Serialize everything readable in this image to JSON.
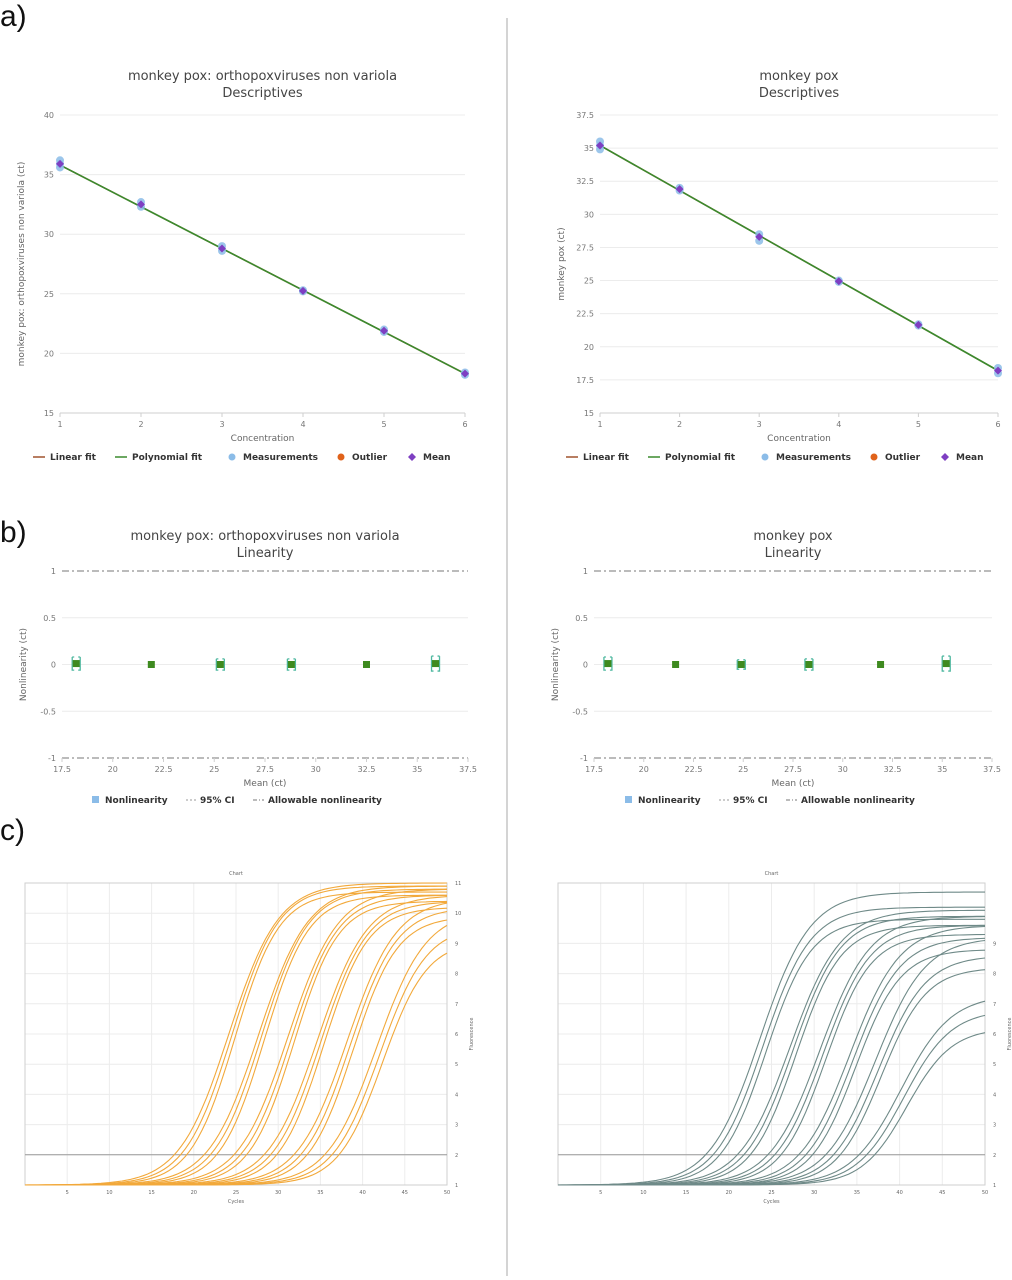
{
  "panel_labels": [
    "a)",
    "b)",
    "c)"
  ],
  "chart_data": [
    {
      "id": "desc_left",
      "type": "scatter",
      "title": "monkey pox: orthopoxviruses non variola",
      "subtitle": "Descriptives",
      "xlabel": "Concentration",
      "ylabel": "monkey pox: orthopoxviruses non variola (ct)",
      "xlim": [
        1,
        6
      ],
      "ylim": [
        15,
        40
      ],
      "xticks": [
        1,
        2,
        3,
        4,
        5,
        6
      ],
      "xtick_labels": [
        "1",
        "2",
        "3",
        "4",
        "5",
        "6"
      ],
      "yticks": [
        15,
        20,
        25,
        30,
        35,
        40
      ],
      "ytick_labels": [
        "15",
        "20",
        "25",
        "30",
        "35",
        "40"
      ],
      "legend": [
        "Linear fit",
        "Polynomial fit",
        "Measurements",
        "Outlier",
        "Mean"
      ],
      "legend_position": "bottom",
      "measurements": [
        [
          1,
          36.2
        ],
        [
          1,
          35.6
        ],
        [
          1,
          35.9
        ],
        [
          2,
          32.7
        ],
        [
          2,
          32.3
        ],
        [
          3,
          29.0
        ],
        [
          3,
          28.6
        ],
        [
          4,
          25.3
        ],
        [
          4,
          25.2
        ],
        [
          5,
          22.0
        ],
        [
          5,
          21.8
        ],
        [
          6,
          18.4
        ],
        [
          6,
          18.2
        ]
      ],
      "means": [
        [
          1,
          35.9
        ],
        [
          2,
          32.5
        ],
        [
          3,
          28.8
        ],
        [
          4,
          25.25
        ],
        [
          5,
          21.9
        ],
        [
          6,
          18.3
        ]
      ],
      "linear_fit": [
        [
          1,
          35.8
        ],
        [
          6,
          18.3
        ]
      ],
      "polynomial_fit": [
        [
          1,
          35.8
        ],
        [
          6,
          18.3
        ]
      ],
      "colors": {
        "linear": "#a0522d",
        "poly": "#3b8a2e",
        "measurement": "#8bbce8",
        "outlier": "#e0621a",
        "mean": "#7e3fc2"
      }
    },
    {
      "id": "desc_right",
      "type": "scatter",
      "title": "monkey pox",
      "subtitle": "Descriptives",
      "xlabel": "Concentration",
      "ylabel": "monkey pox (ct)",
      "xlim": [
        1,
        6
      ],
      "ylim": [
        15,
        37.5
      ],
      "xticks": [
        1,
        2,
        3,
        4,
        5,
        6
      ],
      "xtick_labels": [
        "1",
        "2",
        "3",
        "4",
        "5",
        "6"
      ],
      "yticks": [
        15,
        17.5,
        20,
        22.5,
        25,
        27.5,
        30,
        32.5,
        35,
        37.5
      ],
      "ytick_labels": [
        "15",
        "17.5",
        "20",
        "22.5",
        "25",
        "27.5",
        "30",
        "32.5",
        "35",
        "37.5"
      ],
      "legend": [
        "Linear fit",
        "Polynomial fit",
        "Measurements",
        "Outlier",
        "Mean"
      ],
      "legend_position": "bottom",
      "measurements": [
        [
          1,
          35.5
        ],
        [
          1,
          34.9
        ],
        [
          1,
          35.2
        ],
        [
          2,
          32.0
        ],
        [
          2,
          31.8
        ],
        [
          3,
          28.5
        ],
        [
          3,
          28.0
        ],
        [
          4,
          25.0
        ],
        [
          4,
          24.9
        ],
        [
          5,
          21.7
        ],
        [
          5,
          21.6
        ],
        [
          6,
          18.4
        ],
        [
          6,
          18.0
        ]
      ],
      "means": [
        [
          1,
          35.2
        ],
        [
          2,
          31.9
        ],
        [
          3,
          28.3
        ],
        [
          4,
          24.95
        ],
        [
          5,
          21.65
        ],
        [
          6,
          18.2
        ]
      ],
      "linear_fit": [
        [
          1,
          35.2
        ],
        [
          6,
          18.2
        ]
      ],
      "polynomial_fit": [
        [
          1,
          35.2
        ],
        [
          6,
          18.2
        ]
      ],
      "colors": {
        "linear": "#a0522d",
        "poly": "#3b8a2e",
        "measurement": "#8bbce8",
        "outlier": "#e0621a",
        "mean": "#7e3fc2"
      }
    },
    {
      "id": "lin_left",
      "type": "scatter",
      "title": "monkey pox: orthopoxviruses non variola",
      "subtitle": "Linearity",
      "xlabel": "Mean (ct)",
      "ylabel": "Nonlinearity (ct)",
      "xlim": [
        17.5,
        37.5
      ],
      "ylim": [
        -1,
        1
      ],
      "xticks": [
        17.5,
        20,
        22.5,
        25,
        27.5,
        30,
        32.5,
        35,
        37.5
      ],
      "xtick_labels": [
        "17.5",
        "20",
        "22.5",
        "25",
        "27.5",
        "30",
        "32.5",
        "35",
        "37.5"
      ],
      "yticks": [
        -1,
        -0.5,
        0,
        0.5,
        1
      ],
      "ytick_labels": [
        "-1",
        "-0.5",
        "0",
        "0.5",
        "1"
      ],
      "legend": [
        "Nonlinearity",
        "95% CI",
        "Allowable nonlinearity"
      ],
      "legend_position": "bottom",
      "points": [
        [
          18.2,
          0.01,
          0.07
        ],
        [
          21.9,
          0.0,
          0.02
        ],
        [
          25.3,
          0.0,
          0.06
        ],
        [
          28.8,
          0.0,
          0.06
        ],
        [
          32.5,
          0.0,
          0.02
        ],
        [
          35.9,
          0.01,
          0.08
        ]
      ],
      "allowable": [
        -1,
        1
      ],
      "colors": {
        "point": "#3e8a1f",
        "ci": "#4fb8a0",
        "allow": "#777777",
        "legend_square": "#8bbce8"
      }
    },
    {
      "id": "lin_right",
      "type": "scatter",
      "title": "monkey pox",
      "subtitle": "Linearity",
      "xlabel": "Mean (ct)",
      "ylabel": "Nonlinearity (ct)",
      "xlim": [
        17.5,
        37.5
      ],
      "ylim": [
        -1,
        1
      ],
      "xticks": [
        17.5,
        20,
        22.5,
        25,
        27.5,
        30,
        32.5,
        35,
        37.5
      ],
      "xtick_labels": [
        "17.5",
        "20",
        "22.5",
        "25",
        "27.5",
        "30",
        "32.5",
        "35",
        "37.5"
      ],
      "yticks": [
        -1,
        -0.5,
        0,
        0.5,
        1
      ],
      "ytick_labels": [
        "-1",
        "-0.5",
        "0",
        "0.5",
        "1"
      ],
      "legend": [
        "Nonlinearity",
        "95% CI",
        "Allowable nonlinearity"
      ],
      "legend_position": "bottom",
      "points": [
        [
          18.2,
          0.01,
          0.07
        ],
        [
          21.6,
          0.0,
          0.02
        ],
        [
          24.9,
          0.0,
          0.05
        ],
        [
          28.3,
          0.0,
          0.06
        ],
        [
          31.9,
          0.0,
          0.02
        ],
        [
          35.2,
          0.01,
          0.08
        ]
      ],
      "allowable": [
        -1,
        1
      ],
      "colors": {
        "point": "#3e8a1f",
        "ci": "#4fb8a0",
        "allow": "#777777",
        "legend_square": "#8bbce8"
      }
    },
    {
      "id": "pcr_left",
      "type": "line",
      "title": "Chart",
      "xlabel": "Cycles",
      "ylabel": "Fluorescence",
      "xlim": [
        0,
        50
      ],
      "ylim": [
        1,
        11
      ],
      "xticks": [
        5,
        10,
        15,
        20,
        25,
        30,
        35,
        40,
        45,
        50
      ],
      "xtick_labels": [
        "5",
        "10",
        "15",
        "20",
        "25",
        "30",
        "35",
        "40",
        "45",
        "50"
      ],
      "yticks": [
        1,
        2,
        3,
        4,
        5,
        6,
        7,
        8,
        9,
        10,
        11
      ],
      "ytick_labels": [
        "1",
        "2",
        "3",
        "4",
        "5",
        "6",
        "7",
        "8",
        "9",
        "10",
        "11"
      ],
      "threshold": 2.0,
      "baseline": 1.0,
      "curve_groups": [
        {
          "midpoint": 24.5,
          "plateaus": [
            11.0,
            10.9,
            10.7
          ]
        },
        {
          "midpoint": 28.0,
          "plateaus": [
            10.9,
            10.8,
            10.6
          ]
        },
        {
          "midpoint": 31.5,
          "plateaus": [
            10.8,
            10.6,
            10.4
          ]
        },
        {
          "midpoint": 35.0,
          "plateaus": [
            10.6,
            10.4,
            10.2
          ]
        },
        {
          "midpoint": 38.5,
          "plateaus": [
            10.5,
            10.2,
            9.9
          ]
        },
        {
          "midpoint": 42.0,
          "plateaus": [
            10.1,
            9.6,
            9.1
          ]
        }
      ],
      "colors": {
        "curve": "#f2a93b",
        "threshold": "#9a9a9a"
      }
    },
    {
      "id": "pcr_right",
      "type": "line",
      "title": "Chart",
      "xlabel": "Cycles",
      "ylabel": "Fluorescence",
      "xlim": [
        0,
        50
      ],
      "ylim": [
        1,
        11
      ],
      "xticks": [
        5,
        10,
        15,
        20,
        25,
        30,
        35,
        40,
        45,
        50
      ],
      "xtick_labels": [
        "5",
        "10",
        "15",
        "20",
        "25",
        "30",
        "35",
        "40",
        "45",
        "50"
      ],
      "yticks": [
        1,
        2,
        3,
        4,
        5,
        6,
        7,
        8,
        9
      ],
      "ytick_labels": [
        "1",
        "2",
        "3",
        "4",
        "5",
        "6",
        "7",
        "8",
        "9"
      ],
      "threshold": 2.0,
      "baseline": 1.0,
      "curve_groups": [
        {
          "midpoint": 24.0,
          "plateaus": [
            10.7,
            10.2,
            9.8
          ]
        },
        {
          "midpoint": 27.5,
          "plateaus": [
            10.1,
            9.9,
            9.6
          ]
        },
        {
          "midpoint": 31.0,
          "plateaus": [
            9.9,
            9.6,
            9.3
          ]
        },
        {
          "midpoint": 34.5,
          "plateaus": [
            9.6,
            9.2,
            8.8
          ]
        },
        {
          "midpoint": 37.5,
          "plateaus": [
            9.2,
            8.6,
            8.2
          ]
        },
        {
          "midpoint": 40.5,
          "plateaus": [
            7.3,
            6.8,
            6.2
          ]
        }
      ],
      "colors": {
        "curve": "#6f8a88",
        "threshold": "#9a9a9a"
      }
    }
  ]
}
